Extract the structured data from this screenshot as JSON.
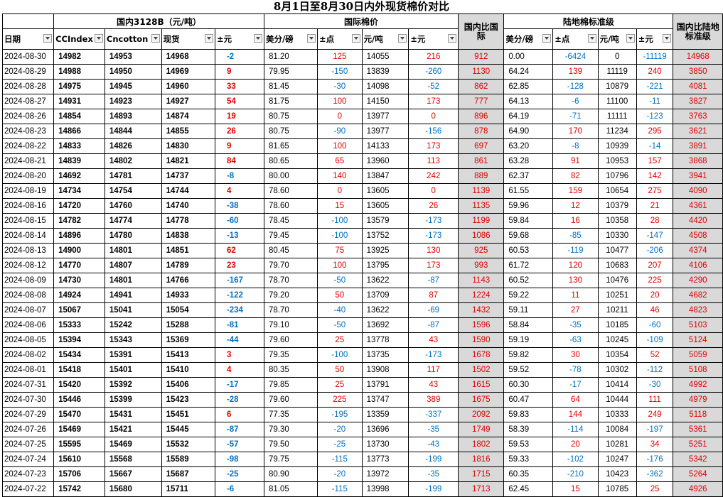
{
  "title": "8月1日至8月30日内外现货棉价对比",
  "groups": {
    "domestic": "国内3128B（元/吨）",
    "intl": "国际棉价",
    "ratio_intl": "国内比国际",
    "land": "陆地棉标准级",
    "ratio_land": "国内比陆地标准级"
  },
  "headers": [
    "日期",
    "CCIndex",
    "Cncotton",
    "现货",
    "±元",
    "美分/磅",
    "±点",
    "元/吨",
    "±元",
    "美分/磅",
    "±点",
    "元/吨",
    "±元"
  ],
  "colors": {
    "red": "#e00000",
    "blue": "#0070c0",
    "gray": "#d9d9d9"
  },
  "rows": [
    [
      "2024-08-30",
      "14982",
      "14953",
      "14968",
      "-2",
      "81.20",
      "125",
      "14055",
      "216",
      "912",
      "0.00",
      "-6424",
      "0",
      "-11119",
      "14968"
    ],
    [
      "2024-08-29",
      "14988",
      "14950",
      "14969",
      "9",
      "79.95",
      "-150",
      "13839",
      "-260",
      "1130",
      "64.24",
      "139",
      "11119",
      "240",
      "3850"
    ],
    [
      "2024-08-28",
      "14975",
      "14945",
      "14960",
      "33",
      "81.45",
      "-30",
      "14098",
      "-52",
      "862",
      "62.85",
      "-128",
      "10879",
      "-221",
      "4081"
    ],
    [
      "2024-08-27",
      "14931",
      "14923",
      "14927",
      "54",
      "81.75",
      "100",
      "14150",
      "173",
      "777",
      "64.13",
      "-6",
      "11100",
      "-11",
      "3827"
    ],
    [
      "2024-08-26",
      "14854",
      "14893",
      "14874",
      "19",
      "80.75",
      "0",
      "13977",
      "0",
      "896",
      "64.19",
      "-71",
      "11111",
      "-123",
      "3763"
    ],
    [
      "2024-08-23",
      "14866",
      "14844",
      "14855",
      "26",
      "80.75",
      "-90",
      "13977",
      "-156",
      "878",
      "64.90",
      "170",
      "11234",
      "295",
      "3621"
    ],
    [
      "2024-08-22",
      "14833",
      "14826",
      "14830",
      "9",
      "81.65",
      "100",
      "14133",
      "173",
      "697",
      "63.20",
      "-8",
      "10939",
      "-14",
      "3891"
    ],
    [
      "2024-08-21",
      "14839",
      "14802",
      "14821",
      "84",
      "80.65",
      "65",
      "13960",
      "113",
      "861",
      "63.28",
      "91",
      "10953",
      "157",
      "3868"
    ],
    [
      "2024-08-20",
      "14692",
      "14781",
      "14737",
      "-8",
      "80.00",
      "140",
      "13847",
      "242",
      "889",
      "62.37",
      "82",
      "10796",
      "142",
      "3941"
    ],
    [
      "2024-08-19",
      "14734",
      "14754",
      "14744",
      "4",
      "78.60",
      "0",
      "13605",
      "0",
      "1139",
      "61.55",
      "159",
      "10654",
      "275",
      "4090"
    ],
    [
      "2024-08-16",
      "14720",
      "14760",
      "14740",
      "-38",
      "78.60",
      "15",
      "13605",
      "26",
      "1135",
      "59.96",
      "12",
      "10379",
      "21",
      "4361"
    ],
    [
      "2024-08-15",
      "14782",
      "14774",
      "14778",
      "-60",
      "78.45",
      "-100",
      "13579",
      "-173",
      "1199",
      "59.84",
      "16",
      "10358",
      "28",
      "4420"
    ],
    [
      "2024-08-14",
      "14896",
      "14780",
      "14838",
      "-13",
      "79.45",
      "-100",
      "13752",
      "-173",
      "1086",
      "59.68",
      "-85",
      "10330",
      "-147",
      "4508"
    ],
    [
      "2024-08-13",
      "14900",
      "14801",
      "14851",
      "62",
      "80.45",
      "75",
      "13925",
      "130",
      "925",
      "60.53",
      "-119",
      "10477",
      "-206",
      "4374"
    ],
    [
      "2024-08-12",
      "14770",
      "14807",
      "14789",
      "23",
      "79.70",
      "100",
      "13795",
      "173",
      "993",
      "61.72",
      "120",
      "10683",
      "207",
      "4106"
    ],
    [
      "2024-08-09",
      "14730",
      "14801",
      "14766",
      "-167",
      "78.70",
      "-50",
      "13622",
      "-87",
      "1143",
      "60.52",
      "130",
      "10476",
      "225",
      "4290"
    ],
    [
      "2024-08-08",
      "14924",
      "14941",
      "14933",
      "-122",
      "79.20",
      "50",
      "13709",
      "87",
      "1224",
      "59.22",
      "11",
      "10251",
      "20",
      "4682"
    ],
    [
      "2024-08-07",
      "15067",
      "15041",
      "15054",
      "-234",
      "78.70",
      "-40",
      "13622",
      "-69",
      "1432",
      "59.11",
      "27",
      "10211",
      "46",
      "4823"
    ],
    [
      "2024-08-06",
      "15333",
      "15242",
      "15288",
      "-81",
      "79.10",
      "-50",
      "13692",
      "-87",
      "1596",
      "58.84",
      "-35",
      "10185",
      "-60",
      "5103"
    ],
    [
      "2024-08-05",
      "15394",
      "15343",
      "15369",
      "-44",
      "79.60",
      "25",
      "13778",
      "43",
      "1590",
      "59.19",
      "-63",
      "10245",
      "-109",
      "5124"
    ],
    [
      "2024-08-02",
      "15434",
      "15391",
      "15413",
      "3",
      "79.35",
      "-100",
      "13735",
      "-173",
      "1678",
      "59.82",
      "30",
      "10354",
      "52",
      "5059"
    ],
    [
      "2024-08-01",
      "15418",
      "15401",
      "15410",
      "4",
      "80.35",
      "50",
      "13908",
      "117",
      "1502",
      "59.52",
      "-78",
      "10302",
      "-112",
      "5108"
    ],
    [
      "2024-07-31",
      "15420",
      "15392",
      "15406",
      "-17",
      "79.85",
      "25",
      "13791",
      "43",
      "1615",
      "60.30",
      "-17",
      "10414",
      "-30",
      "4992"
    ],
    [
      "2024-07-30",
      "15446",
      "15399",
      "15423",
      "-28",
      "79.60",
      "225",
      "13747",
      "389",
      "1675",
      "60.47",
      "64",
      "10444",
      "111",
      "4979"
    ],
    [
      "2024-07-29",
      "15470",
      "15431",
      "15451",
      "6",
      "77.35",
      "-195",
      "13359",
      "-337",
      "2092",
      "59.83",
      "144",
      "10333",
      "249",
      "5118"
    ],
    [
      "2024-07-26",
      "15469",
      "15421",
      "15445",
      "-87",
      "79.30",
      "-20",
      "13696",
      "-35",
      "1749",
      "58.39",
      "-114",
      "10084",
      "-197",
      "5361"
    ],
    [
      "2024-07-25",
      "15595",
      "15469",
      "15532",
      "-57",
      "79.50",
      "-25",
      "13730",
      "-43",
      "1802",
      "59.53",
      "20",
      "10281",
      "34",
      "5251"
    ],
    [
      "2024-07-24",
      "15610",
      "15568",
      "15589",
      "-98",
      "79.75",
      "-115",
      "13773",
      "-199",
      "1816",
      "59.33",
      "-102",
      "10247",
      "-176",
      "5342"
    ],
    [
      "2024-07-23",
      "15706",
      "15667",
      "15687",
      "-25",
      "80.90",
      "-20",
      "13972",
      "-35",
      "1715",
      "60.35",
      "-210",
      "10423",
      "-362",
      "5264"
    ],
    [
      "2024-07-22",
      "15742",
      "15680",
      "15711",
      "-6",
      "81.05",
      "-115",
      "13998",
      "-199",
      "1713",
      "62.45",
      "15",
      "10785",
      "25",
      "4926"
    ]
  ]
}
